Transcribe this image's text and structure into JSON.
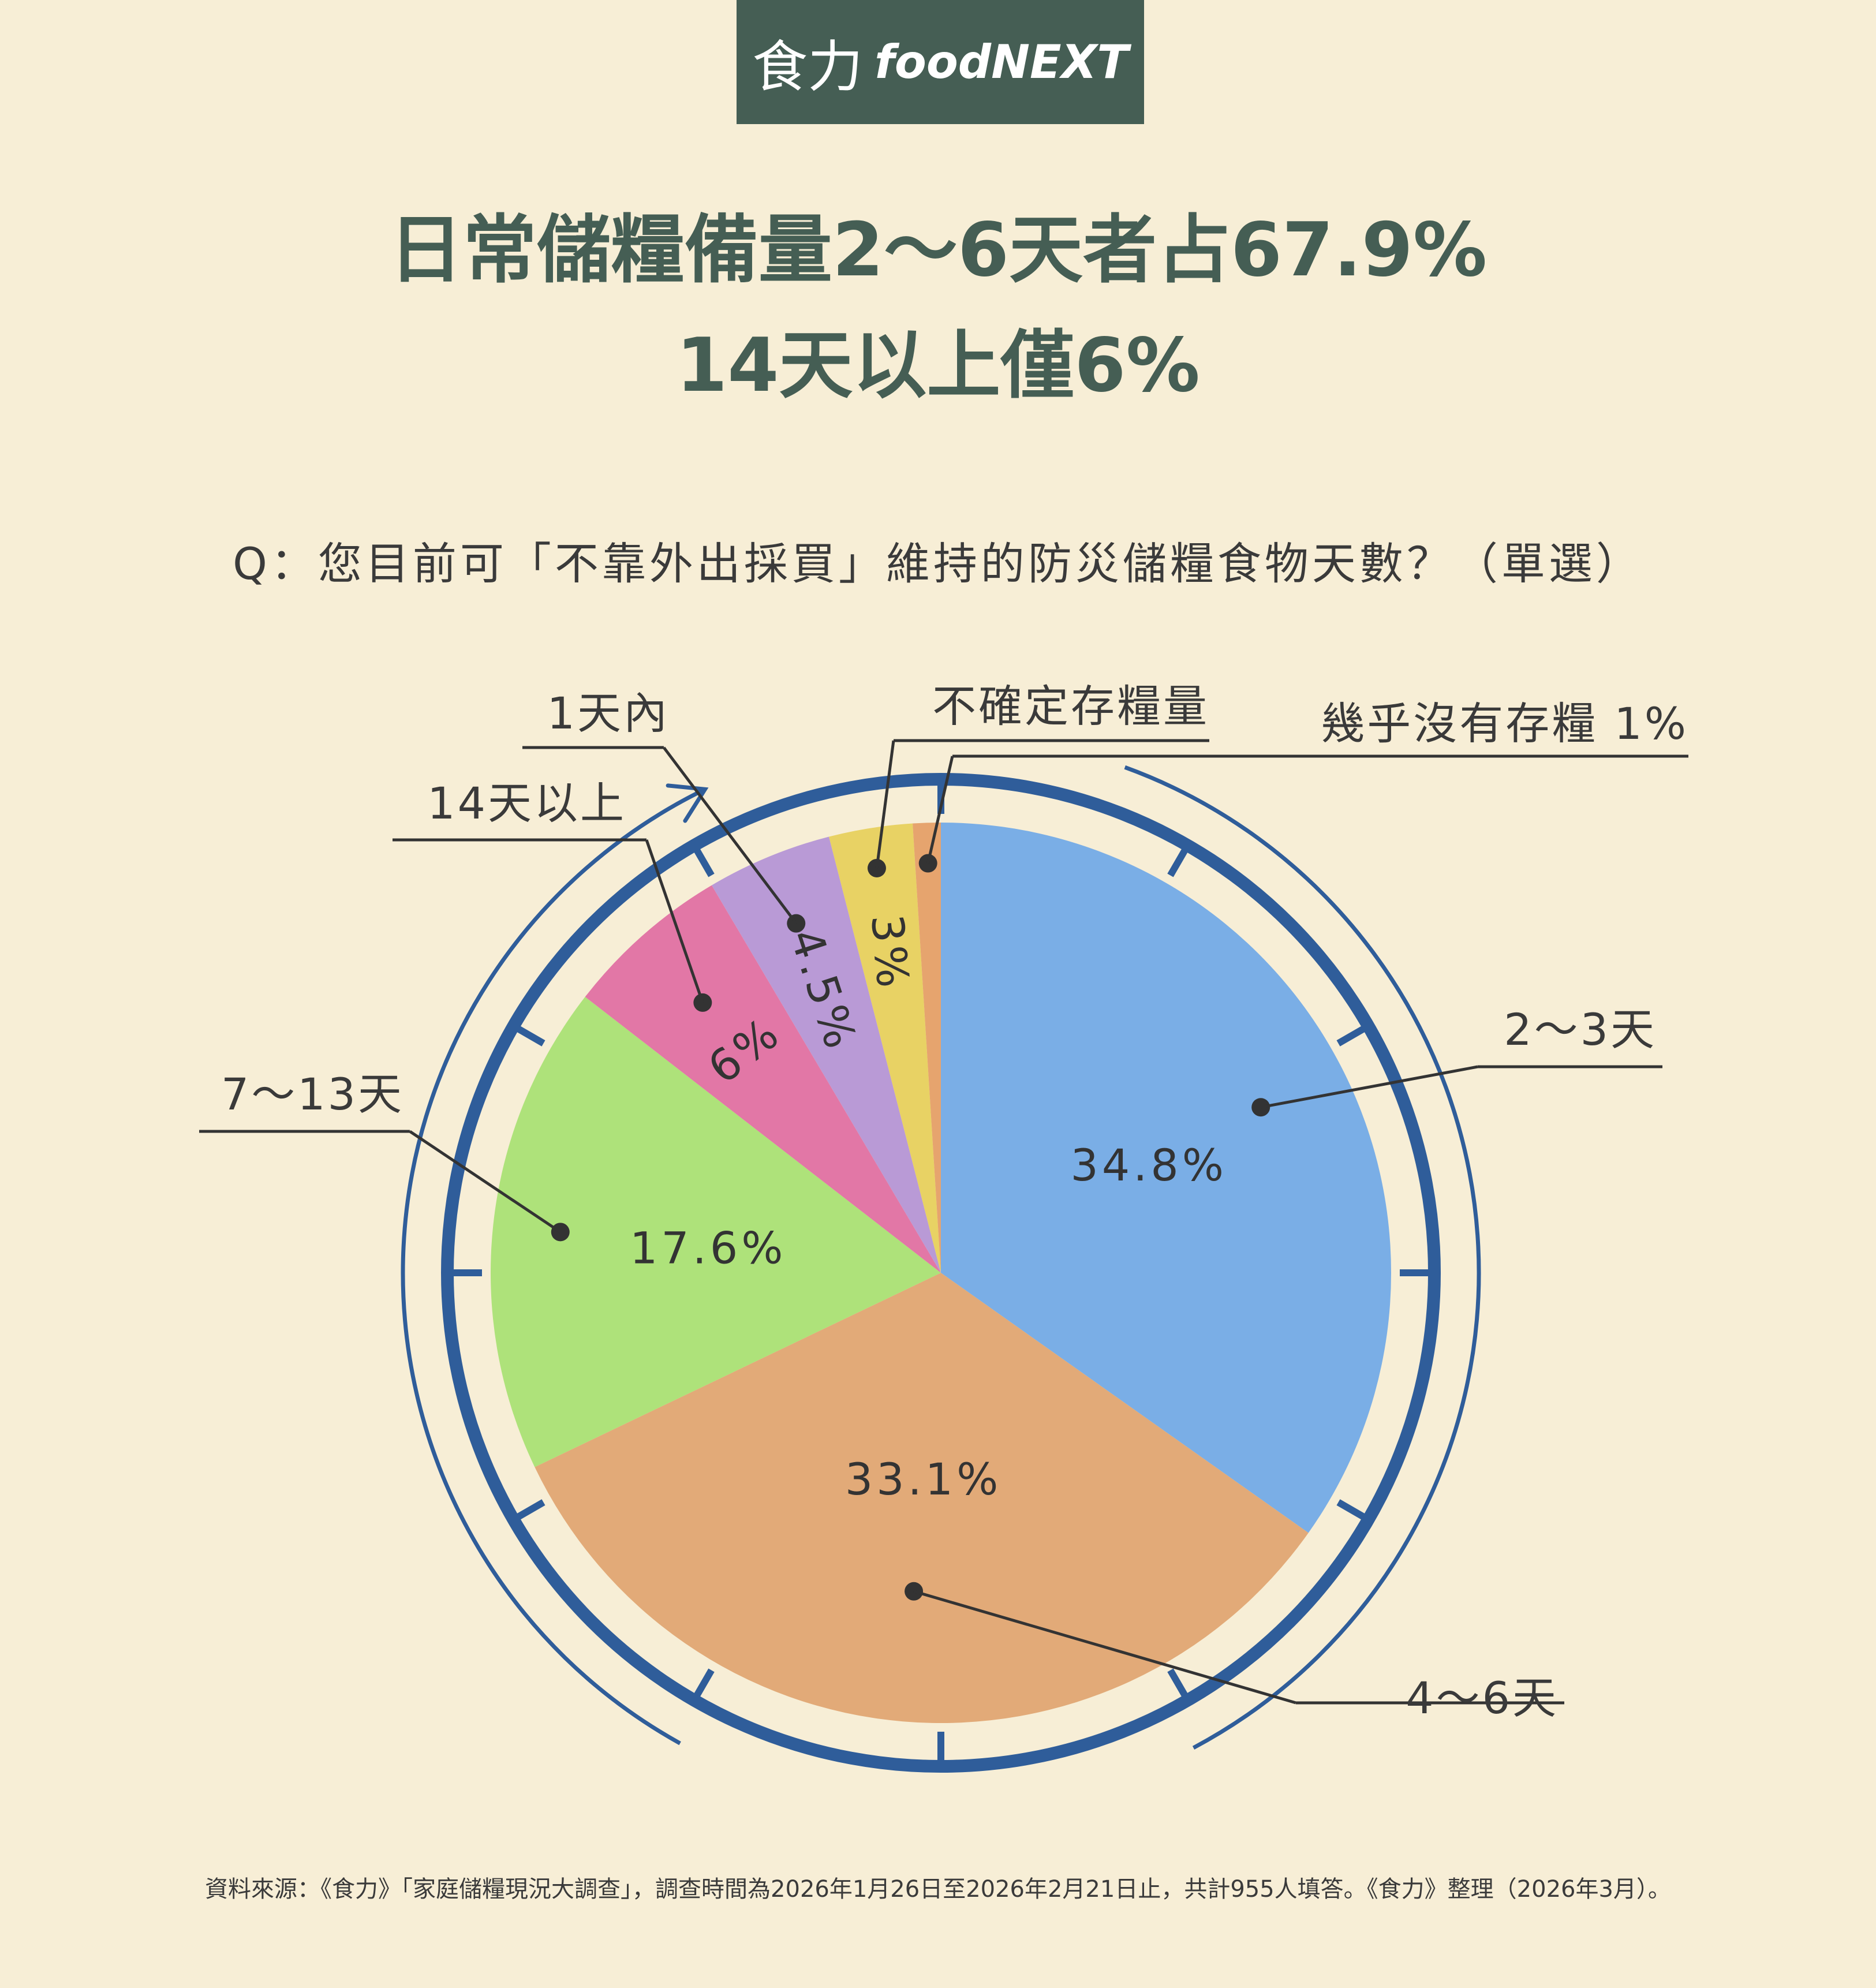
{
  "logo": {
    "zh": "食力",
    "en": "foodNEXT"
  },
  "headline": {
    "line1": "日常儲糧備量2～6天者占67.9%",
    "line2": "14天以上僅6%"
  },
  "question": "Q：您目前可「不靠外出採買」維持的防災儲糧食物天數？（單選）",
  "source": "資料來源：《食力》「家庭儲糧現況大調查」，調查時間為2026年1月26日至2026年2月21日止，共計955人填答。《食力》整理（2026年3月）。",
  "colors": {
    "ring": "#2f5d9a",
    "background": "#f7eed6",
    "title": "#455e54"
  },
  "chart_data": {
    "type": "pie",
    "series": [
      {
        "name": "2～3天",
        "value": 34.8,
        "label": "34.8%",
        "color": "#7aaee6"
      },
      {
        "name": "4～6天",
        "value": 33.1,
        "label": "33.1%",
        "color": "#e2aa78"
      },
      {
        "name": "7～13天",
        "value": 17.6,
        "label": "17.6%",
        "color": "#aee27a"
      },
      {
        "name": "14天以上",
        "value": 6,
        "label": "6%",
        "color": "#e277a6"
      },
      {
        "name": "1天內",
        "value": 4.5,
        "label": "4.5%",
        "color": "#b99ad6"
      },
      {
        "name": "不確定存糧量",
        "value": 3,
        "label": "3%",
        "color": "#e8d264"
      },
      {
        "name": "幾乎沒有存糧",
        "value": 1,
        "label": "1%",
        "color": "#e6a46e"
      }
    ]
  }
}
